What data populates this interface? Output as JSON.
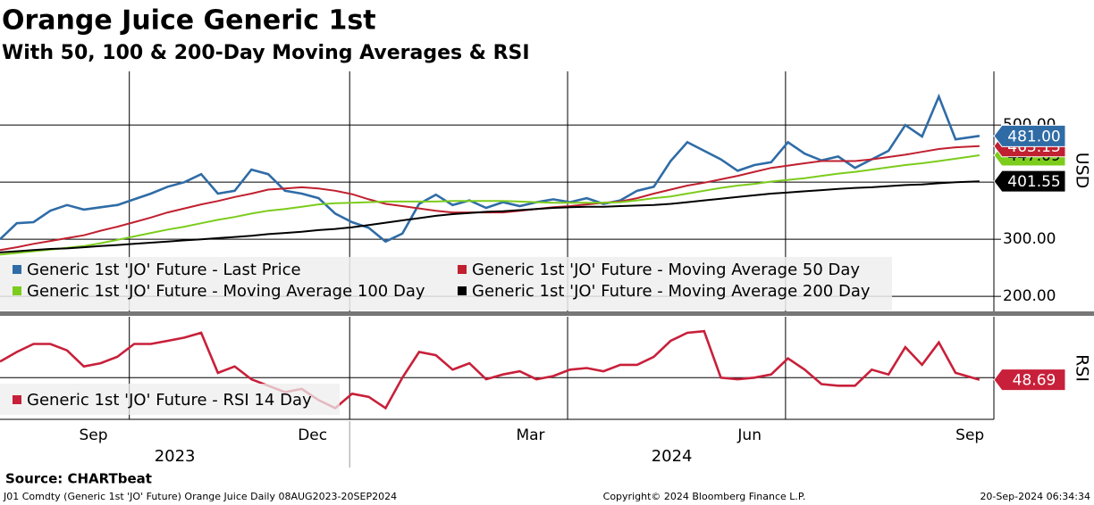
{
  "title": "Orange Juice Generic 1st",
  "subtitle": "With 50, 100 & 200-Day Moving Averages & RSI",
  "source": "Source: CHARTbeat",
  "footer": {
    "left": "J01 Comdty (Generic 1st 'JO' Future) Orange Juice  Daily 08AUG2023-20SEP2024",
    "center": "Copyright© 2024 Bloomberg Finance L.P.",
    "right": "20-Sep-2024 06:34:34"
  },
  "chart_data": [
    {
      "type": "line",
      "ylabel": "USD",
      "xlim": [
        "2023-08-08",
        "2024-09-26"
      ],
      "ylim": [
        169,
        594
      ],
      "yticks": [
        {
          "value": 200,
          "label": "200.00"
        },
        {
          "value": 300,
          "label": "300.00"
        },
        {
          "value": 400,
          "label": "400.00"
        },
        {
          "value": 500,
          "label": "500.00"
        }
      ],
      "grid": true,
      "x": [
        "2023-08-08",
        "2023-08-15",
        "2023-08-22",
        "2023-08-29",
        "2023-09-05",
        "2023-09-12",
        "2023-09-19",
        "2023-09-26",
        "2023-10-03",
        "2023-10-10",
        "2023-10-17",
        "2023-10-24",
        "2023-10-31",
        "2023-11-07",
        "2023-11-14",
        "2023-11-21",
        "2023-11-28",
        "2023-12-05",
        "2023-12-12",
        "2023-12-19",
        "2023-12-26",
        "2024-01-02",
        "2024-01-09",
        "2024-01-16",
        "2024-01-23",
        "2024-01-30",
        "2024-02-06",
        "2024-02-13",
        "2024-02-20",
        "2024-02-27",
        "2024-03-05",
        "2024-03-12",
        "2024-03-19",
        "2024-03-26",
        "2024-04-02",
        "2024-04-09",
        "2024-04-16",
        "2024-04-23",
        "2024-04-30",
        "2024-05-07",
        "2024-05-14",
        "2024-05-21",
        "2024-05-28",
        "2024-06-04",
        "2024-06-11",
        "2024-06-18",
        "2024-06-25",
        "2024-07-02",
        "2024-07-09",
        "2024-07-16",
        "2024-07-23",
        "2024-07-30",
        "2024-08-06",
        "2024-08-13",
        "2024-08-20",
        "2024-08-27",
        "2024-09-03",
        "2024-09-10",
        "2024-09-20"
      ],
      "series": [
        {
          "name": "Generic 1st 'JO' Future - Last Price",
          "color": "#2f6ca6",
          "last_label": "481.00",
          "values": [
            300,
            328,
            330,
            350,
            360,
            352,
            356,
            360,
            370,
            380,
            392,
            400,
            414,
            380,
            385,
            422,
            414,
            385,
            380,
            372,
            345,
            330,
            320,
            296,
            310,
            362,
            378,
            360,
            368,
            355,
            365,
            358,
            365,
            370,
            365,
            372,
            362,
            368,
            385,
            392,
            437,
            470,
            455,
            440,
            420,
            430,
            435,
            470,
            450,
            438,
            445,
            425,
            440,
            455,
            500,
            480,
            550,
            475,
            481
          ]
        },
        {
          "name": "Generic 1st 'JO' Future - Moving Average 50 Day",
          "color": "#c0202f",
          "last_label": "463.13",
          "values": [
            281,
            286,
            292,
            297,
            302,
            307,
            315,
            322,
            330,
            338,
            347,
            354,
            361,
            367,
            374,
            380,
            387,
            389,
            391,
            389,
            385,
            379,
            370,
            362,
            358,
            354,
            350,
            347,
            347,
            347,
            347,
            350,
            353,
            356,
            358,
            361,
            364,
            366,
            372,
            380,
            387,
            394,
            399,
            405,
            411,
            418,
            425,
            429,
            433,
            437,
            437,
            437,
            440,
            444,
            448,
            453,
            458,
            461,
            463.13
          ]
        },
        {
          "name": "Generic 1st 'JO' Future - Moving Average 100 Day",
          "color": "#7ccc1c",
          "last_label": "447.09",
          "values": [
            273,
            276,
            279,
            282,
            285,
            288,
            293,
            299,
            305,
            311,
            317,
            322,
            328,
            334,
            339,
            345,
            350,
            353,
            357,
            361,
            363,
            364,
            365,
            366,
            366,
            366,
            366,
            367,
            367,
            367,
            367,
            366,
            365,
            364,
            364,
            364,
            364,
            365,
            368,
            372,
            375,
            380,
            385,
            390,
            394,
            397,
            401,
            404,
            407,
            411,
            415,
            418,
            422,
            426,
            430,
            433,
            437,
            441,
            447.09
          ]
        },
        {
          "name": "Generic 1st 'JO' Future - Moving Average 200 Day",
          "color": "#000000",
          "last_label": "401.55",
          "values": [
            277,
            279,
            281,
            283,
            284,
            286,
            288,
            290,
            292,
            294,
            296,
            298,
            300,
            302,
            304,
            306,
            309,
            311,
            313,
            316,
            318,
            321,
            325,
            329,
            333,
            337,
            341,
            344,
            346,
            348,
            349,
            351,
            353,
            355,
            356,
            357,
            357,
            358,
            359,
            360,
            362,
            365,
            368,
            371,
            374,
            377,
            380,
            382,
            384,
            386,
            388,
            390,
            391,
            393,
            395,
            396,
            398,
            400,
            401.55
          ]
        }
      ]
    },
    {
      "type": "line",
      "ylabel": "RSI",
      "xlim": [
        "2023-08-08",
        "2024-09-26"
      ],
      "ylim": [
        24,
        88
      ],
      "yticks": [
        50
      ],
      "grid": true,
      "xticks": [
        {
          "value": "2023-09",
          "label": "Sep"
        },
        {
          "value": "2023-12",
          "label": "Dec"
        },
        {
          "value": "2024-03",
          "label": "Mar"
        },
        {
          "value": "2024-06",
          "label": "Jun"
        },
        {
          "value": "2024-09",
          "label": "Sep"
        }
      ],
      "years": [
        "2023",
        "2024"
      ],
      "x": [
        "2023-08-08",
        "2023-08-15",
        "2023-08-22",
        "2023-08-29",
        "2023-09-05",
        "2023-09-12",
        "2023-09-19",
        "2023-09-26",
        "2023-10-03",
        "2023-10-10",
        "2023-10-17",
        "2023-10-24",
        "2023-10-31",
        "2023-11-07",
        "2023-11-14",
        "2023-11-21",
        "2023-11-28",
        "2023-12-05",
        "2023-12-12",
        "2023-12-19",
        "2023-12-26",
        "2024-01-02",
        "2024-01-09",
        "2024-01-16",
        "2024-01-23",
        "2024-01-30",
        "2024-02-06",
        "2024-02-13",
        "2024-02-20",
        "2024-02-27",
        "2024-03-05",
        "2024-03-12",
        "2024-03-19",
        "2024-03-26",
        "2024-04-02",
        "2024-04-09",
        "2024-04-16",
        "2024-04-23",
        "2024-04-30",
        "2024-05-07",
        "2024-05-14",
        "2024-05-21",
        "2024-05-28",
        "2024-06-04",
        "2024-06-11",
        "2024-06-18",
        "2024-06-25",
        "2024-07-02",
        "2024-07-09",
        "2024-07-16",
        "2024-07-23",
        "2024-07-30",
        "2024-08-06",
        "2024-08-13",
        "2024-08-20",
        "2024-08-27",
        "2024-09-03",
        "2024-09-10",
        "2024-09-20"
      ],
      "series": [
        {
          "name": "Generic 1st 'JO' Future - RSI 14 Day",
          "color": "#c8203a",
          "last_label": "48.69",
          "values": [
            60,
            66,
            71,
            71,
            67,
            57,
            59,
            63,
            71,
            71,
            73,
            75,
            78,
            53,
            57,
            49,
            45,
            41,
            43,
            36,
            31,
            40,
            38,
            31,
            50,
            66,
            64,
            55,
            59,
            49,
            52,
            54,
            49,
            51,
            55,
            56,
            54,
            58,
            58,
            63,
            73,
            78,
            79,
            50,
            49,
            50,
            52,
            62,
            55,
            46,
            45,
            45,
            55,
            52,
            69,
            58,
            72,
            53,
            48.69
          ]
        }
      ]
    }
  ]
}
